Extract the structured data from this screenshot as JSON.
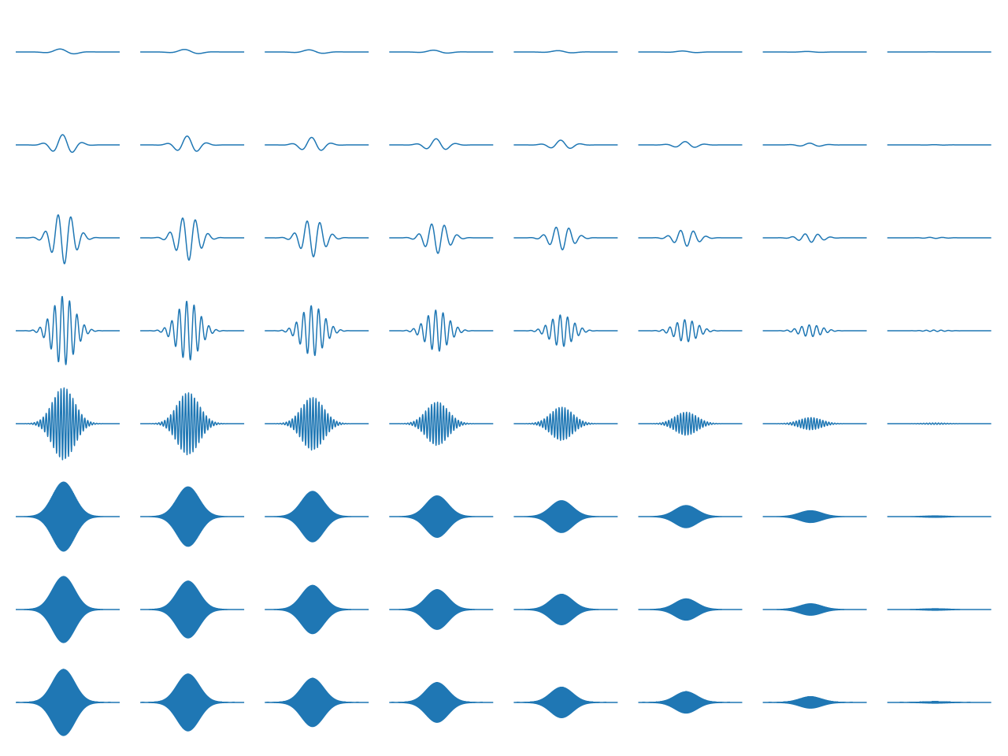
{
  "chart_data": [
    {
      "type": "wave",
      "amplitude": 4,
      "cycles": 3,
      "color": "#1f77b4"
    },
    {
      "type": "wave",
      "amplitude": 3.4,
      "cycles": 3,
      "color": "#1f77b4"
    },
    {
      "type": "wave",
      "amplitude": 2.9,
      "cycles": 3,
      "color": "#1f77b4"
    },
    {
      "type": "wave",
      "amplitude": 2.4,
      "cycles": 3,
      "color": "#1f77b4"
    },
    {
      "type": "wave",
      "amplitude": 1.8,
      "cycles": 3,
      "color": "#1f77b4"
    },
    {
      "type": "wave",
      "amplitude": 1.3,
      "cycles": 3,
      "color": "#1f77b4"
    },
    {
      "type": "wave",
      "amplitude": 0.7,
      "cycles": 3,
      "color": "#1f77b4"
    },
    {
      "type": "wave",
      "amplitude": 0.1,
      "cycles": 3,
      "color": "#1f77b4"
    },
    {
      "type": "wave",
      "amplitude": 13,
      "cycles": 5,
      "color": "#1f77b4"
    },
    {
      "type": "wave",
      "amplitude": 11.2,
      "cycles": 5,
      "color": "#1f77b4"
    },
    {
      "type": "wave",
      "amplitude": 9.5,
      "cycles": 5,
      "color": "#1f77b4"
    },
    {
      "type": "wave",
      "amplitude": 7.8,
      "cycles": 5,
      "color": "#1f77b4"
    },
    {
      "type": "wave",
      "amplitude": 6,
      "cycles": 5,
      "color": "#1f77b4"
    },
    {
      "type": "wave",
      "amplitude": 4.2,
      "cycles": 5,
      "color": "#1f77b4"
    },
    {
      "type": "wave",
      "amplitude": 2.2,
      "cycles": 5,
      "color": "#1f77b4"
    },
    {
      "type": "wave",
      "amplitude": 0.3,
      "cycles": 5,
      "color": "#1f77b4"
    },
    {
      "type": "wave",
      "amplitude": 33,
      "cycles": 8,
      "color": "#1f77b4"
    },
    {
      "type": "wave",
      "amplitude": 28.4,
      "cycles": 8,
      "color": "#1f77b4"
    },
    {
      "type": "wave",
      "amplitude": 24.1,
      "cycles": 8,
      "color": "#1f77b4"
    },
    {
      "type": "wave",
      "amplitude": 19.8,
      "cycles": 8,
      "color": "#1f77b4"
    },
    {
      "type": "wave",
      "amplitude": 15.2,
      "cycles": 8,
      "color": "#1f77b4"
    },
    {
      "type": "wave",
      "amplitude": 10.6,
      "cycles": 8,
      "color": "#1f77b4"
    },
    {
      "type": "wave",
      "amplitude": 5.6,
      "cycles": 8,
      "color": "#1f77b4"
    },
    {
      "type": "wave",
      "amplitude": 0.7,
      "cycles": 8,
      "color": "#1f77b4"
    },
    {
      "type": "wave",
      "amplitude": 44,
      "cycles": 14,
      "color": "#1f77b4"
    },
    {
      "type": "wave",
      "amplitude": 37.8,
      "cycles": 14,
      "color": "#1f77b4"
    },
    {
      "type": "wave",
      "amplitude": 32.1,
      "cycles": 14,
      "color": "#1f77b4"
    },
    {
      "type": "wave",
      "amplitude": 26.4,
      "cycles": 14,
      "color": "#1f77b4"
    },
    {
      "type": "wave",
      "amplitude": 20.2,
      "cycles": 14,
      "color": "#1f77b4"
    },
    {
      "type": "wave",
      "amplitude": 14.1,
      "cycles": 14,
      "color": "#1f77b4"
    },
    {
      "type": "wave",
      "amplitude": 7.5,
      "cycles": 14,
      "color": "#1f77b4"
    },
    {
      "type": "wave",
      "amplitude": 0.9,
      "cycles": 14,
      "color": "#1f77b4"
    },
    {
      "type": "wave",
      "amplitude": 46,
      "cycles": 35,
      "color": "#1f77b4"
    },
    {
      "type": "wave",
      "amplitude": 39.6,
      "cycles": 35,
      "color": "#1f77b4"
    },
    {
      "type": "wave",
      "amplitude": 33.6,
      "cycles": 35,
      "color": "#1f77b4"
    },
    {
      "type": "wave",
      "amplitude": 27.6,
      "cycles": 35,
      "color": "#1f77b4"
    },
    {
      "type": "wave",
      "amplitude": 21.2,
      "cycles": 35,
      "color": "#1f77b4"
    },
    {
      "type": "wave",
      "amplitude": 14.7,
      "cycles": 35,
      "color": "#1f77b4"
    },
    {
      "type": "wave",
      "amplitude": 7.8,
      "cycles": 35,
      "color": "#1f77b4"
    },
    {
      "type": "wave",
      "amplitude": 0.9,
      "cycles": 35,
      "color": "#1f77b4"
    },
    {
      "type": "wave",
      "amplitude": 46,
      "cycles": 150,
      "color": "#1f77b4"
    },
    {
      "type": "wave",
      "amplitude": 39.6,
      "cycles": 150,
      "color": "#1f77b4"
    },
    {
      "type": "wave",
      "amplitude": 33.6,
      "cycles": 150,
      "color": "#1f77b4"
    },
    {
      "type": "wave",
      "amplitude": 27.6,
      "cycles": 150,
      "color": "#1f77b4"
    },
    {
      "type": "wave",
      "amplitude": 21.2,
      "cycles": 150,
      "color": "#1f77b4"
    },
    {
      "type": "wave",
      "amplitude": 14.7,
      "cycles": 150,
      "color": "#1f77b4"
    },
    {
      "type": "wave",
      "amplitude": 7.8,
      "cycles": 150,
      "color": "#1f77b4"
    },
    {
      "type": "wave",
      "amplitude": 0.9,
      "cycles": 150,
      "color": "#1f77b4"
    },
    {
      "type": "wave",
      "amplitude": 44,
      "cycles": 400,
      "color": "#1f77b4"
    },
    {
      "type": "wave",
      "amplitude": 37.8,
      "cycles": 400,
      "color": "#1f77b4"
    },
    {
      "type": "wave",
      "amplitude": 32.1,
      "cycles": 400,
      "color": "#1f77b4"
    },
    {
      "type": "wave",
      "amplitude": 26.4,
      "cycles": 400,
      "color": "#1f77b4"
    },
    {
      "type": "wave",
      "amplitude": 20.2,
      "cycles": 400,
      "color": "#1f77b4"
    },
    {
      "type": "wave",
      "amplitude": 14.1,
      "cycles": 400,
      "color": "#1f77b4"
    },
    {
      "type": "wave",
      "amplitude": 7.5,
      "cycles": 400,
      "color": "#1f77b4"
    },
    {
      "type": "wave",
      "amplitude": 0.9,
      "cycles": 400,
      "color": "#1f77b4"
    },
    {
      "type": "wave",
      "amplitude": 44,
      "cycles": 900,
      "color": "#1f77b4"
    },
    {
      "type": "wave",
      "amplitude": 37.8,
      "cycles": 900,
      "color": "#1f77b4"
    },
    {
      "type": "wave",
      "amplitude": 32.1,
      "cycles": 900,
      "color": "#1f77b4"
    },
    {
      "type": "wave",
      "amplitude": 26.4,
      "cycles": 900,
      "color": "#1f77b4"
    },
    {
      "type": "wave",
      "amplitude": 20.2,
      "cycles": 900,
      "color": "#1f77b4"
    },
    {
      "type": "wave",
      "amplitude": 14.1,
      "cycles": 900,
      "color": "#1f77b4"
    },
    {
      "type": "wave",
      "amplitude": 7.5,
      "cycles": 900,
      "color": "#1f77b4"
    },
    {
      "type": "wave",
      "amplitude": 0.9,
      "cycles": 900,
      "color": "#1f77b4"
    }
  ]
}
